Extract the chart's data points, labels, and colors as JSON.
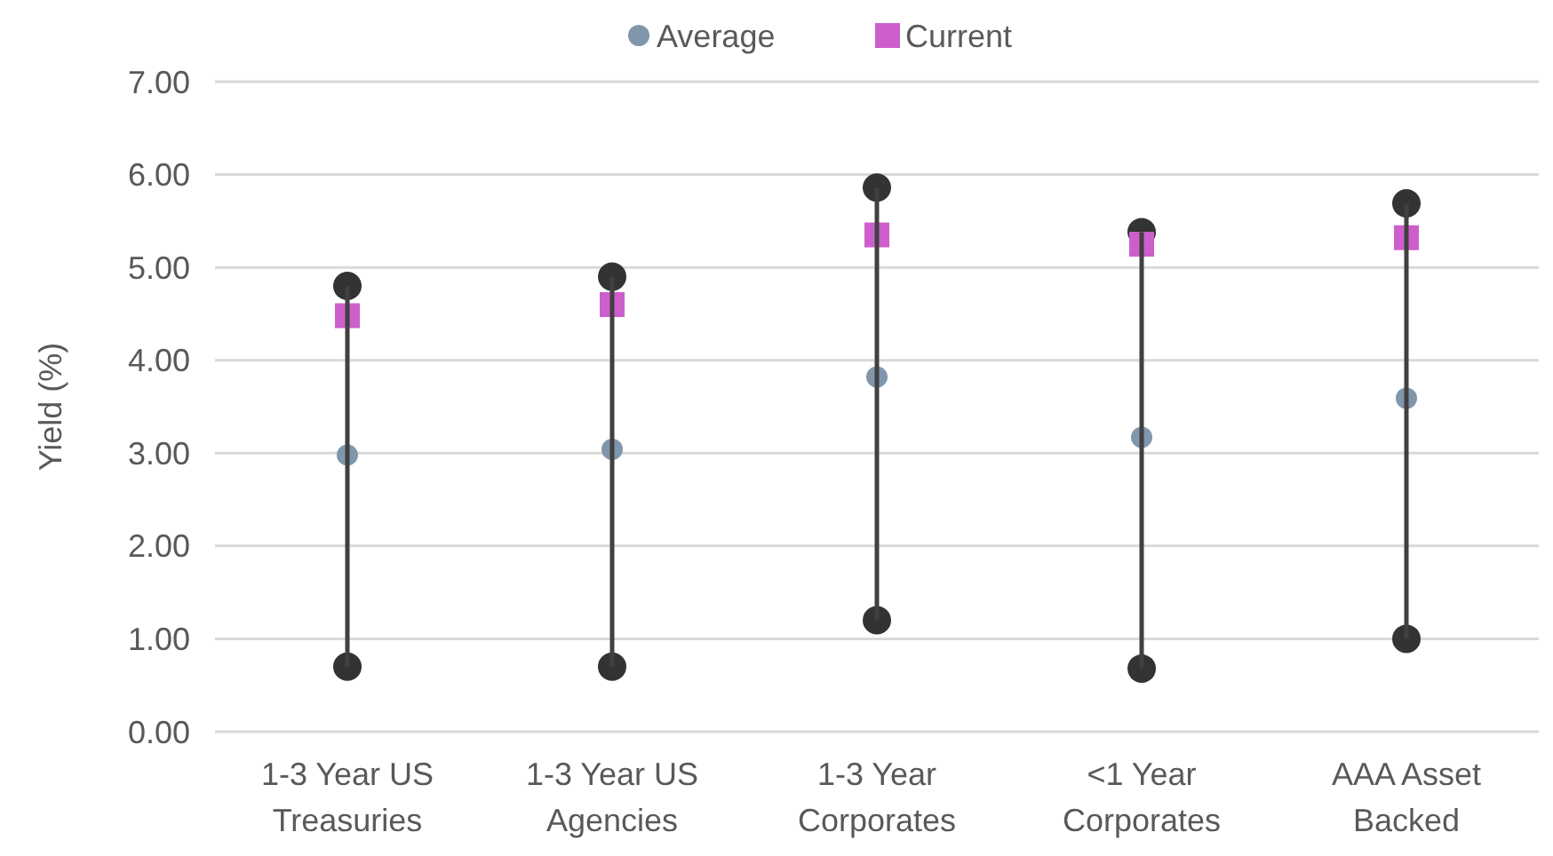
{
  "chart_data": {
    "type": "scatter",
    "ylabel": "Yield (%)",
    "categories": [
      "1-3 Year US Treasuries",
      "1-3 Year US Agencies",
      "1-3 Year Corporates",
      "<1 Year Corporates",
      "AAA Asset Backed"
    ],
    "series": [
      {
        "marker": "circle",
        "color": "#333333",
        "values": [
          4.8,
          4.9,
          5.86,
          5.38,
          5.69
        ]
      },
      {
        "marker": "circle",
        "color": "#333333",
        "values": [
          0.7,
          0.7,
          1.2,
          0.68,
          1.0
        ]
      },
      {
        "name": "Average",
        "marker": "circle",
        "color": "#7f96ab",
        "values": [
          2.98,
          3.04,
          3.82,
          3.17,
          3.59
        ]
      },
      {
        "name": "Current",
        "marker": "square",
        "color": "#cc5fcc",
        "values": [
          4.48,
          4.6,
          5.35,
          5.25,
          5.32
        ]
      },
      {
        "type": "bar",
        "color": "#404040",
        "base": [
          0.7,
          0.7,
          1.2,
          0.68,
          1.0
        ],
        "values": [
          4.1,
          4.2,
          4.66,
          4.7,
          4.69
        ]
      }
    ],
    "ylim": [
      0,
      7
    ],
    "yticks": [
      {
        "value": 0,
        "label": "0.00"
      },
      {
        "value": 1,
        "label": "1.00"
      },
      {
        "value": 2,
        "label": "2.00"
      },
      {
        "value": 3,
        "label": "3.00"
      },
      {
        "value": 4,
        "label": "4.00"
      },
      {
        "value": 5,
        "label": "5.00"
      },
      {
        "value": 6,
        "label": "6.00"
      },
      {
        "value": 7,
        "label": "7.00"
      }
    ],
    "grid": "y",
    "legend": "top"
  }
}
